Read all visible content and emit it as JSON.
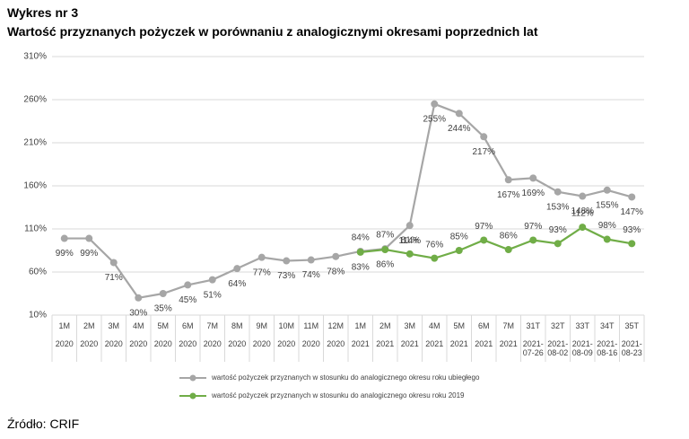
{
  "chart_data": {
    "type": "line",
    "title": "Wykres nr 3",
    "subtitle": "Wartość przyznanych pożyczek w porównaniu z analogicznymi okresami poprzednich lat",
    "source": "Źródło: CRIF",
    "categories": [
      "1M",
      "2M",
      "3M",
      "4M",
      "5M",
      "6M",
      "7M",
      "8M",
      "9M",
      "10M",
      "11M",
      "12M",
      "1M",
      "2M",
      "3M",
      "4M",
      "5M",
      "6M",
      "7M",
      "31T",
      "32T",
      "33T",
      "34T",
      "35T"
    ],
    "category_years": [
      "2020",
      "2020",
      "2020",
      "2020",
      "2020",
      "2020",
      "2020",
      "2020",
      "2020",
      "2020",
      "2020",
      "2020",
      "2021",
      "2021",
      "2021",
      "2021",
      "2021",
      "2021",
      "2021",
      "2021-07-26",
      "2021-08-02",
      "2021-08-09",
      "2021-08-16",
      "2021-08-23"
    ],
    "series": [
      {
        "name": "wartość pożyczek przyznanych w stosunku do analogicznego okresu roku ubiegłego",
        "color": "#a6a6a6",
        "values": [
          99,
          99,
          71,
          30,
          35,
          45,
          51,
          64,
          77,
          73,
          74,
          78,
          84,
          87,
          114,
          255,
          244,
          217,
          167,
          169,
          153,
          148,
          155,
          147
        ],
        "value_labels": [
          "99%",
          "99%",
          "71%",
          "30%",
          "35%",
          "45%",
          "51%",
          "64%",
          "77%",
          "73%",
          "74%",
          "78%",
          "84%",
          "87%",
          "114%",
          "255%",
          "244%",
          "217%",
          "167%",
          "169%",
          "153%",
          "148%",
          "155%",
          "147%"
        ]
      },
      {
        "name": "wartość pożyczek przyznanych w stosunku do analogicznego okresu roku 2019",
        "color": "#70ad47",
        "values": [
          null,
          null,
          null,
          null,
          null,
          null,
          null,
          null,
          null,
          null,
          null,
          null,
          83,
          86,
          81,
          76,
          85,
          97,
          86,
          97,
          93,
          112,
          98,
          93
        ],
        "value_labels": [
          null,
          null,
          null,
          null,
          null,
          null,
          null,
          null,
          null,
          null,
          null,
          null,
          "83%",
          "86%",
          "81%",
          "76%",
          "85%",
          "97%",
          "86%",
          "97%",
          "93%",
          "112%",
          "98%",
          "93%"
        ]
      }
    ],
    "ylim": [
      10,
      310
    ],
    "yticks": [
      {
        "value": 10,
        "label": "10%"
      },
      {
        "value": 60,
        "label": "60%"
      },
      {
        "value": 110,
        "label": "110%"
      },
      {
        "value": 160,
        "label": "160%"
      },
      {
        "value": 210,
        "label": "210%"
      },
      {
        "value": 260,
        "label": "260%"
      },
      {
        "value": 310,
        "label": "310%"
      }
    ],
    "grid": true
  }
}
